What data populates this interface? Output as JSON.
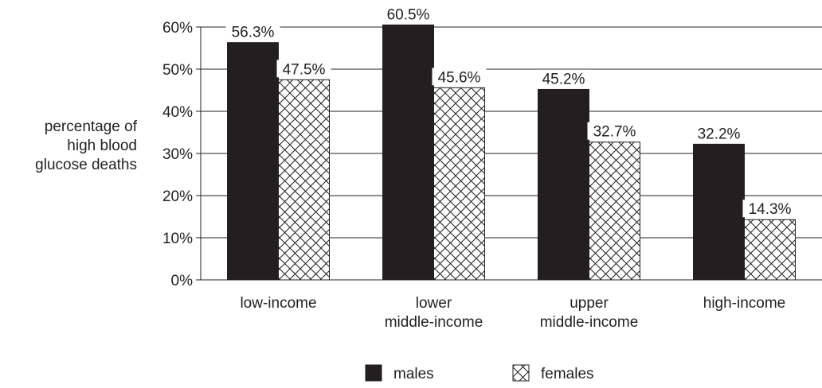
{
  "chart_data": {
    "type": "bar",
    "ylabel_lines": [
      "percentage of",
      "high blood",
      "glucose deaths"
    ],
    "categories": [
      [
        "low-income"
      ],
      [
        "lower",
        "middle-income"
      ],
      [
        "upper",
        "middle-income"
      ],
      [
        "high-income"
      ]
    ],
    "series": [
      {
        "name": "males",
        "values": [
          56.3,
          60.5,
          45.2,
          32.2
        ],
        "labels": [
          "56.3%",
          "60.5%",
          "45.2%",
          "32.2%"
        ],
        "fill": "solid",
        "color": "#231f20"
      },
      {
        "name": "females",
        "values": [
          47.5,
          45.6,
          32.7,
          14.3
        ],
        "labels": [
          "47.5%",
          "45.6%",
          "32.7%",
          "14.3%"
        ],
        "fill": "crosshatch",
        "color": "#231f20"
      }
    ],
    "ylim": [
      0,
      60
    ],
    "yticks": [
      0,
      10,
      20,
      30,
      40,
      50,
      60
    ],
    "ytick_labels": [
      "0%",
      "10%",
      "20%",
      "30%",
      "40%",
      "50%",
      "60%"
    ],
    "grid": true,
    "legend_position": "bottom"
  }
}
